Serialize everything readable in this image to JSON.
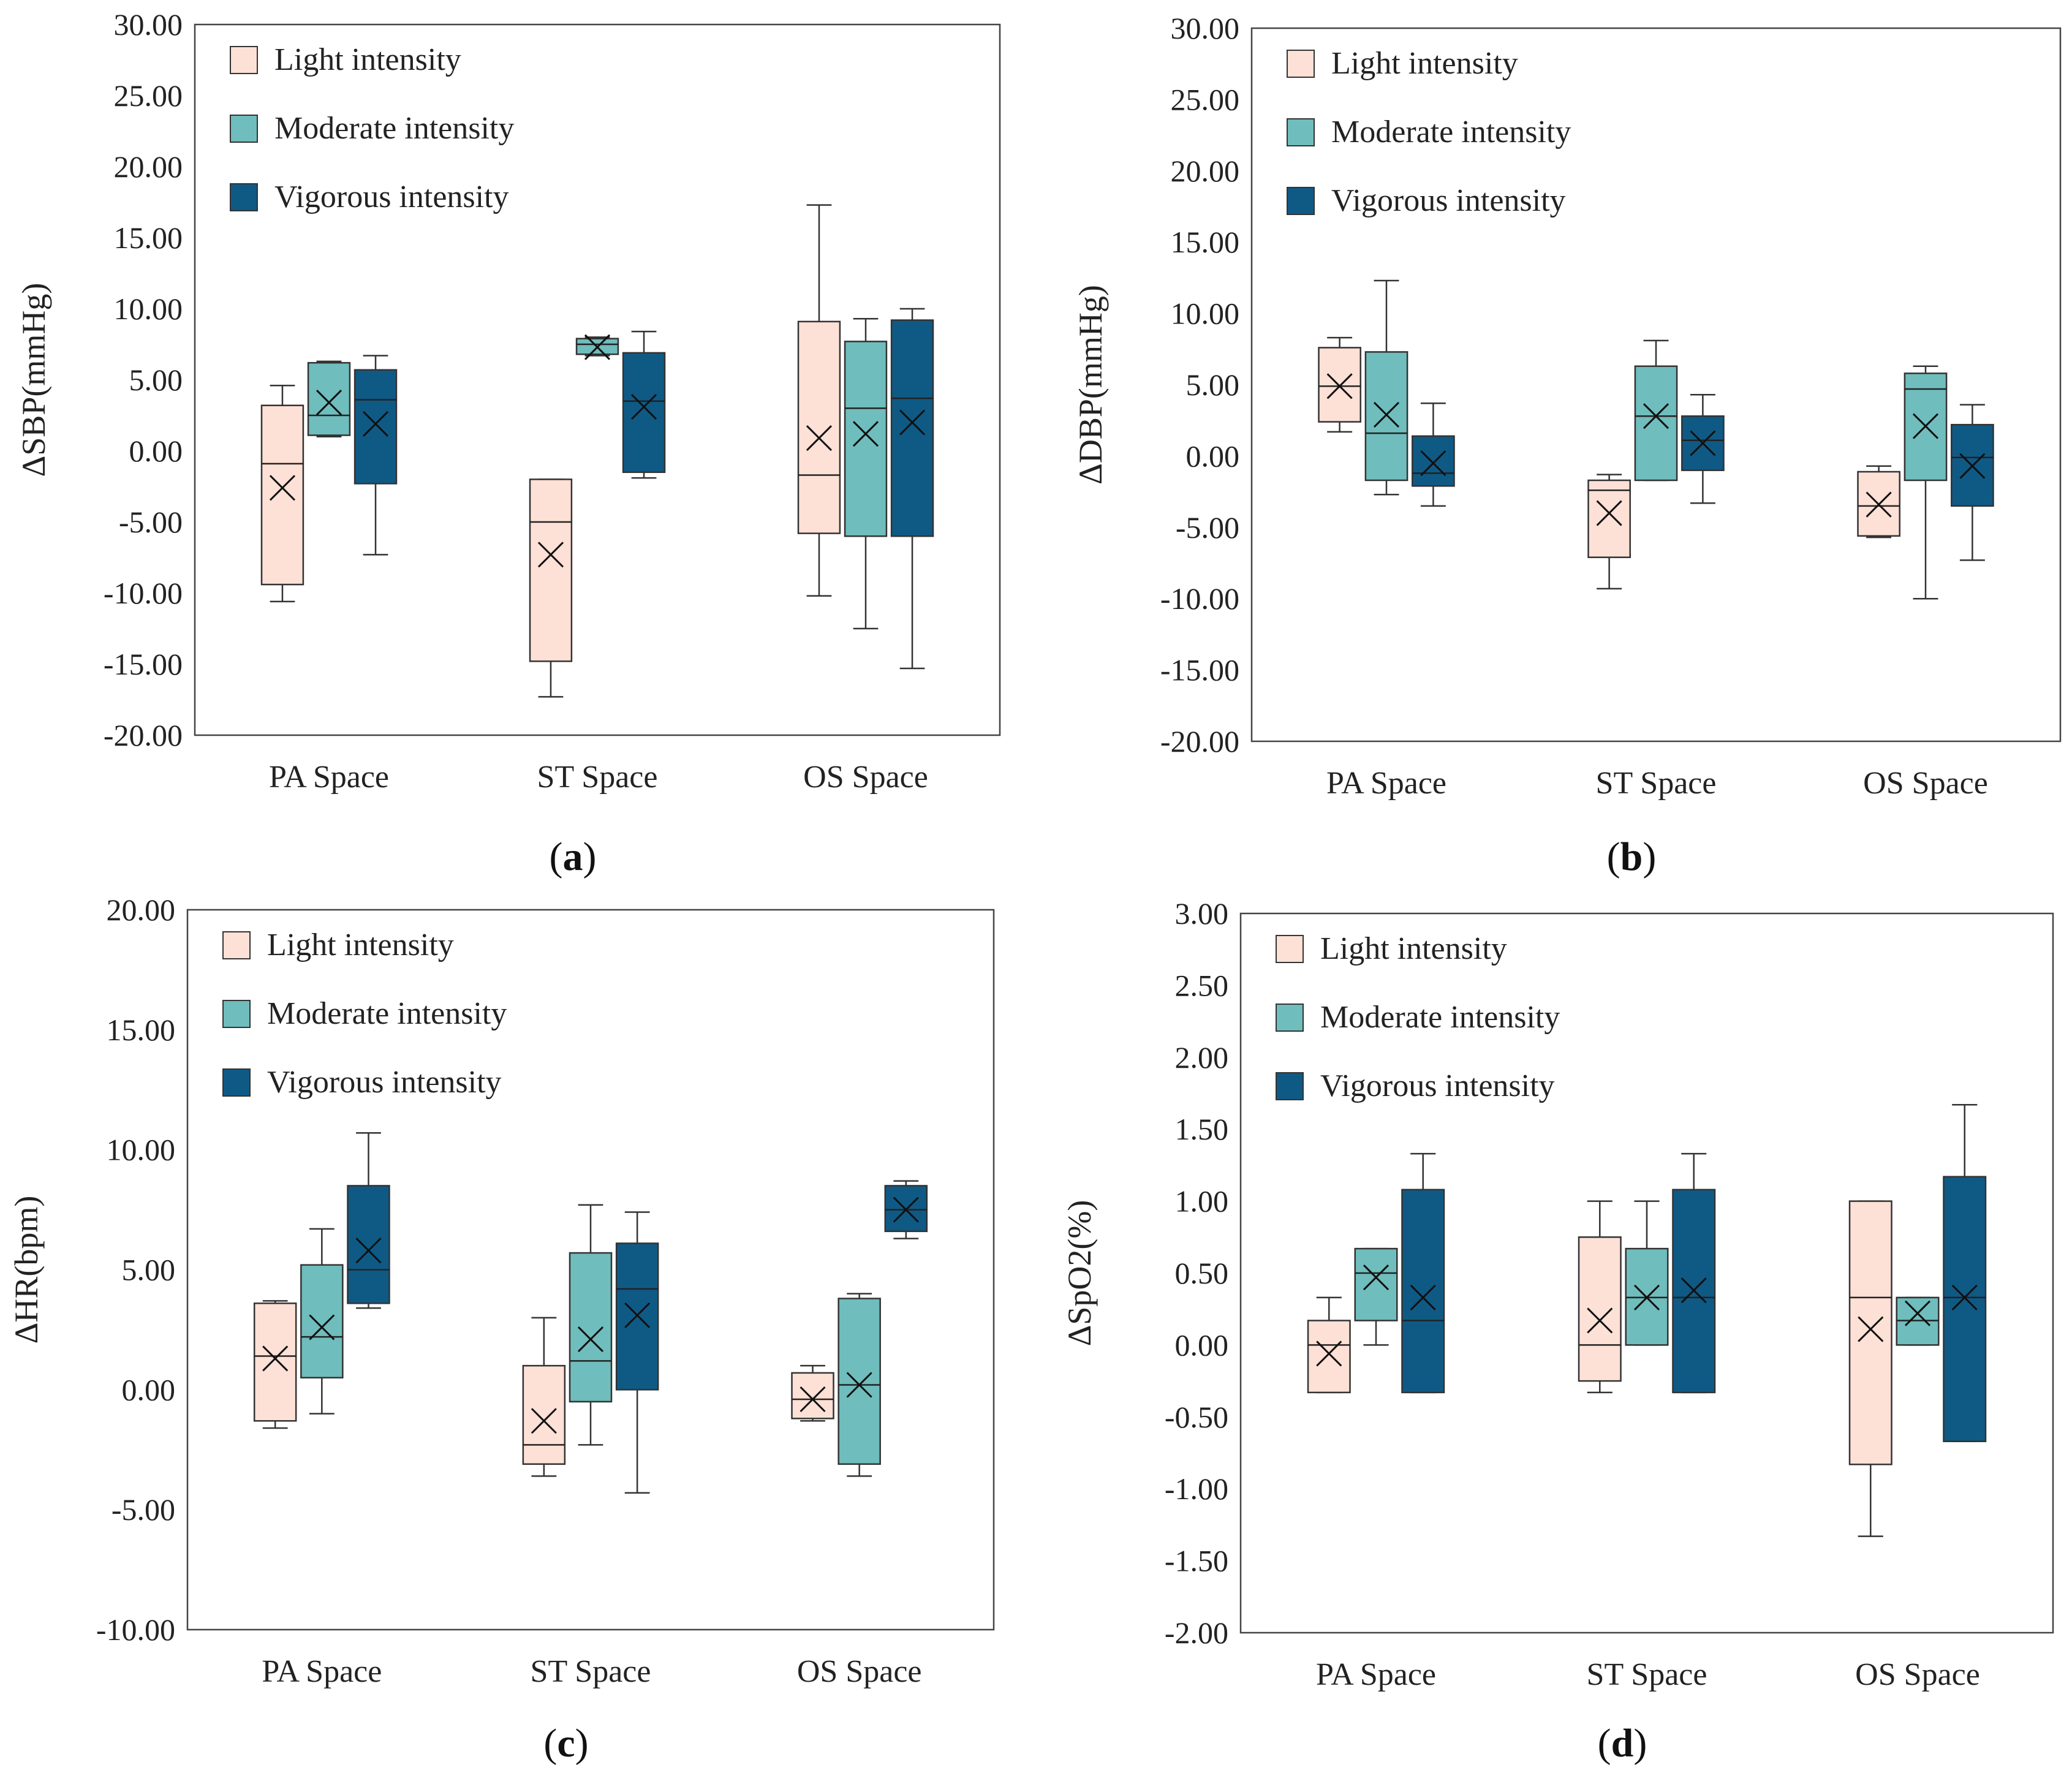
{
  "figure": {
    "legend": [
      {
        "label": "Light intensity",
        "color": "#fde0d6"
      },
      {
        "label": "Moderate intensity",
        "color": "#6fbdbc"
      },
      {
        "label": "Vigorous intensity",
        "color": "#0f5a85"
      }
    ],
    "categories": [
      "PA Space",
      "ST Space",
      "OS Space"
    ]
  },
  "chart_data": [
    {
      "type": "box",
      "panel_label": "a",
      "panel_label_open": "(",
      "panel_label_close": ")",
      "ylabel": "ΔSBP(mmHg)",
      "ylim": [
        -20,
        30
      ],
      "yticks": [
        "30.00",
        "25.00",
        "20.00",
        "15.00",
        "10.00",
        "5.00",
        "0.00",
        "-5.00",
        "-10.00",
        "-15.00",
        "-20.00"
      ],
      "categories": [
        "PA Space",
        "ST Space",
        "OS Space"
      ],
      "series": [
        {
          "name": "Light intensity",
          "boxes": [
            {
              "min": -10.6,
              "q1": -9.4,
              "median": -0.9,
              "q3": 3.2,
              "max": 4.6,
              "mean": -2.6
            },
            {
              "min": -17.3,
              "q1": -14.8,
              "median": -5.0,
              "q3": -2.0,
              "max": -2.0,
              "mean": -7.3
            },
            {
              "min": -10.2,
              "q1": -5.8,
              "median": -1.7,
              "q3": 9.1,
              "max": 17.3,
              "mean": 0.9
            }
          ]
        },
        {
          "name": "Moderate intensity",
          "boxes": [
            {
              "min": 1.0,
              "q1": 1.1,
              "median": 2.5,
              "q3": 6.2,
              "max": 6.3,
              "mean": 3.4
            },
            {
              "min": 6.7,
              "q1": 6.8,
              "median": 7.5,
              "q3": 7.9,
              "max": 8.0,
              "mean": 7.3
            },
            {
              "min": -12.5,
              "q1": -6.0,
              "median": 3.0,
              "q3": 7.7,
              "max": 9.3,
              "mean": 1.2
            }
          ]
        },
        {
          "name": "Vigorous intensity",
          "boxes": [
            {
              "min": -7.3,
              "q1": -2.3,
              "median": 3.6,
              "q3": 5.7,
              "max": 6.7,
              "mean": 1.9
            },
            {
              "min": -1.9,
              "q1": -1.5,
              "median": 3.5,
              "q3": 6.9,
              "max": 8.4,
              "mean": 3.1
            },
            {
              "min": -15.3,
              "q1": -6.0,
              "median": 3.7,
              "q3": 9.2,
              "max": 10.0,
              "mean": 2.0
            }
          ]
        }
      ]
    },
    {
      "type": "box",
      "panel_label": "b",
      "panel_label_open": "(",
      "panel_label_close": ")",
      "ylabel": "ΔDBP(mmHg)",
      "ylim": [
        -20,
        30
      ],
      "yticks": [
        "30.00",
        "25.00",
        "20.00",
        "15.00",
        "10.00",
        "5.00",
        "0.00",
        "-5.00",
        "-10.00",
        "-15.00",
        "-20.00"
      ],
      "categories": [
        "PA Space",
        "ST Space",
        "OS Space"
      ],
      "series": [
        {
          "name": "Light intensity",
          "boxes": [
            {
              "min": 1.7,
              "q1": 2.4,
              "median": 4.9,
              "q3": 7.6,
              "max": 8.3,
              "mean": 4.9
            },
            {
              "min": -9.3,
              "q1": -7.1,
              "median": -2.4,
              "q3": -1.7,
              "max": -1.3,
              "mean": -4.0
            },
            {
              "min": -5.7,
              "q1": -5.6,
              "median": -3.5,
              "q3": -1.1,
              "max": -0.7,
              "mean": -3.4
            }
          ]
        },
        {
          "name": "Moderate intensity",
          "boxes": [
            {
              "min": -2.7,
              "q1": -1.7,
              "median": 1.6,
              "q3": 7.3,
              "max": 12.3,
              "mean": 2.9
            },
            {
              "min": -1.7,
              "q1": -1.7,
              "median": 2.8,
              "q3": 6.3,
              "max": 8.1,
              "mean": 2.8
            },
            {
              "min": -10.0,
              "q1": -1.7,
              "median": 4.7,
              "q3": 5.8,
              "max": 6.3,
              "mean": 2.1
            }
          ]
        },
        {
          "name": "Vigorous intensity",
          "boxes": [
            {
              "min": -3.5,
              "q1": -2.1,
              "median": -1.2,
              "q3": 1.4,
              "max": 3.7,
              "mean": -0.5
            },
            {
              "min": -3.3,
              "q1": -1.0,
              "median": 1.1,
              "q3": 2.8,
              "max": 4.3,
              "mean": 0.9
            },
            {
              "min": -7.3,
              "q1": -3.5,
              "median": -0.1,
              "q3": 2.2,
              "max": 3.6,
              "mean": -0.7
            }
          ]
        }
      ]
    },
    {
      "type": "box",
      "panel_label": "c",
      "panel_label_open": "(",
      "panel_label_close": ")",
      "ylabel": "ΔHR(bpm)",
      "ylim": [
        -10,
        20
      ],
      "yticks": [
        "20.00",
        "15.00",
        "10.00",
        "5.00",
        "0.00",
        "-5.00",
        "-10.00"
      ],
      "categories": [
        "PA Space",
        "ST Space",
        "OS Space"
      ],
      "series": [
        {
          "name": "Light intensity",
          "boxes": [
            {
              "min": -1.6,
              "q1": -1.3,
              "median": 1.4,
              "q3": 3.6,
              "max": 3.7,
              "mean": 1.3
            },
            {
              "min": -3.6,
              "q1": -3.1,
              "median": -2.3,
              "q3": 1.0,
              "max": 3.0,
              "mean": -1.3
            },
            {
              "min": -1.3,
              "q1": -1.2,
              "median": -0.4,
              "q3": 0.7,
              "max": 1.0,
              "mean": -0.4
            }
          ]
        },
        {
          "name": "Moderate intensity",
          "boxes": [
            {
              "min": -1.0,
              "q1": 0.5,
              "median": 2.2,
              "q3": 5.2,
              "max": 6.7,
              "mean": 2.6
            },
            {
              "min": -2.3,
              "q1": -0.5,
              "median": 1.2,
              "q3": 5.7,
              "max": 7.7,
              "mean": 2.1
            },
            {
              "min": -3.6,
              "q1": -3.1,
              "median": 0.2,
              "q3": 3.8,
              "max": 4.0,
              "mean": 0.2
            }
          ]
        },
        {
          "name": "Vigorous intensity",
          "boxes": [
            {
              "min": 3.4,
              "q1": 3.6,
              "median": 5.0,
              "q3": 8.5,
              "max": 10.7,
              "mean": 5.8
            },
            {
              "min": -4.3,
              "q1": 0.0,
              "median": 4.2,
              "q3": 6.1,
              "max": 7.4,
              "mean": 3.1
            },
            {
              "min": 6.3,
              "q1": 6.6,
              "median": 7.5,
              "q3": 8.5,
              "max": 8.7,
              "mean": 7.5
            }
          ]
        }
      ]
    },
    {
      "type": "box",
      "panel_label": "d",
      "panel_label_open": "(",
      "panel_label_close": ")",
      "ylabel": "ΔSpO2(%)",
      "ylim": [
        -2,
        3
      ],
      "yticks": [
        "3.00",
        "2.50",
        "2.00",
        "1.50",
        "1.00",
        "0.50",
        "0.00",
        "-0.50",
        "-1.00",
        "-1.50",
        "-2.00"
      ],
      "categories": [
        "PA Space",
        "ST Space",
        "OS Space"
      ],
      "series": [
        {
          "name": "Light intensity",
          "boxes": [
            {
              "min": -0.33,
              "q1": -0.33,
              "median": 0.0,
              "q3": 0.17,
              "max": 0.33,
              "mean": -0.06
            },
            {
              "min": -0.33,
              "q1": -0.25,
              "median": 0.0,
              "q3": 0.75,
              "max": 1.0,
              "mean": 0.17
            },
            {
              "min": -1.33,
              "q1": -0.83,
              "median": 0.33,
              "q3": 1.0,
              "max": 1.0,
              "mean": 0.11
            }
          ]
        },
        {
          "name": "Moderate intensity",
          "boxes": [
            {
              "min": 0.0,
              "q1": 0.17,
              "median": 0.5,
              "q3": 0.67,
              "max": 0.67,
              "mean": 0.47
            },
            {
              "min": 0.0,
              "q1": 0.0,
              "median": 0.33,
              "q3": 0.67,
              "max": 1.0,
              "mean": 0.33
            },
            {
              "min": 0.0,
              "q1": 0.0,
              "median": 0.17,
              "q3": 0.33,
              "max": 0.33,
              "mean": 0.22
            }
          ]
        },
        {
          "name": "Vigorous intensity",
          "boxes": [
            {
              "min": -0.33,
              "q1": -0.33,
              "median": 0.17,
              "q3": 1.08,
              "max": 1.33,
              "mean": 0.33
            },
            {
              "min": -0.33,
              "q1": -0.33,
              "median": 0.33,
              "q3": 1.08,
              "max": 1.33,
              "mean": 0.38
            },
            {
              "min": -0.67,
              "q1": -0.67,
              "median": 0.33,
              "q3": 1.17,
              "max": 1.67,
              "mean": 0.33
            }
          ]
        }
      ]
    }
  ]
}
